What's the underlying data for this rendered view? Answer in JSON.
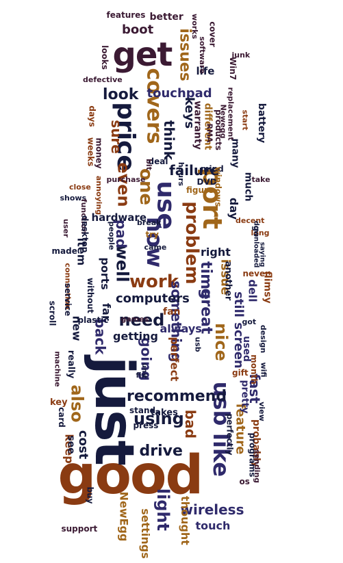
{
  "palette": {
    "plum": "#3b1a33",
    "navy": "#151a3d",
    "indigo": "#2f2a6b",
    "brown": "#8a3b12",
    "amber": "#a0661a"
  },
  "words": [
    {
      "text": "good",
      "color": "brown"
    },
    {
      "text": "just",
      "color": "navy"
    },
    {
      "text": "get",
      "color": "plum"
    },
    {
      "text": "usb",
      "color": "indigo"
    },
    {
      "text": "like",
      "color": "indigo"
    },
    {
      "text": "port",
      "color": "amber"
    },
    {
      "text": "price",
      "color": "navy"
    },
    {
      "text": "use",
      "color": "indigo"
    },
    {
      "text": "now",
      "color": "indigo"
    },
    {
      "text": "covers",
      "color": "amber"
    },
    {
      "text": "problem",
      "color": "brown"
    },
    {
      "text": "work",
      "color": "brown"
    },
    {
      "text": "one",
      "color": "amber"
    },
    {
      "text": "recommend",
      "color": "navy"
    },
    {
      "text": "need",
      "color": "navy"
    },
    {
      "text": "also",
      "color": "amber"
    },
    {
      "text": "using",
      "color": "navy"
    },
    {
      "text": "even",
      "color": "brown"
    },
    {
      "text": "well",
      "color": "navy"
    },
    {
      "text": "drive",
      "color": "navy"
    },
    {
      "text": "wireless",
      "color": "indigo"
    },
    {
      "text": "light",
      "color": "indigo"
    },
    {
      "text": "nice",
      "color": "amber"
    },
    {
      "text": "great",
      "color": "indigo"
    },
    {
      "text": "look",
      "color": "navy"
    },
    {
      "text": "issues",
      "color": "amber"
    },
    {
      "text": "time",
      "color": "indigo"
    },
    {
      "text": "sure",
      "color": "brown"
    },
    {
      "text": "boot",
      "color": "plum"
    },
    {
      "text": "touchpad",
      "color": "indigo"
    },
    {
      "text": "keys",
      "color": "navy"
    },
    {
      "text": "think",
      "color": "navy"
    },
    {
      "text": "failure",
      "color": "navy"
    },
    {
      "text": "pad",
      "color": "indigo"
    },
    {
      "text": "something",
      "color": "indigo"
    },
    {
      "text": "going",
      "color": "indigo"
    },
    {
      "text": "back",
      "color": "indigo"
    },
    {
      "text": "bad",
      "color": "brown"
    },
    {
      "text": "fast",
      "color": "indigo"
    },
    {
      "text": "screen",
      "color": "indigo"
    },
    {
      "text": "feature",
      "color": "amber"
    },
    {
      "text": "still",
      "color": "indigo"
    },
    {
      "text": "computers",
      "color": "navy"
    },
    {
      "text": "issue",
      "color": "amber"
    },
    {
      "text": "right",
      "color": "navy"
    },
    {
      "text": "day",
      "color": "navy"
    },
    {
      "text": "touch",
      "color": "indigo"
    },
    {
      "text": "settings",
      "color": "amber"
    },
    {
      "text": "NewEgg",
      "color": "amber"
    },
    {
      "text": "always",
      "color": "indigo"
    },
    {
      "text": "getting",
      "color": "navy"
    },
    {
      "text": "cost",
      "color": "navy"
    },
    {
      "text": "new",
      "color": "navy"
    },
    {
      "text": "keep",
      "color": "brown"
    },
    {
      "text": "see",
      "color": "navy"
    },
    {
      "text": "item",
      "color": "navy"
    },
    {
      "text": "ports",
      "color": "navy"
    },
    {
      "text": "hardware",
      "color": "navy"
    },
    {
      "text": "far",
      "color": "navy"
    },
    {
      "text": "used",
      "color": "indigo"
    },
    {
      "text": "dell",
      "color": "indigo"
    },
    {
      "text": "perfect",
      "color": "brown"
    },
    {
      "text": "takes",
      "color": "navy"
    },
    {
      "text": "probably",
      "color": "brown"
    },
    {
      "text": "fan",
      "color": "brown"
    },
    {
      "text": "pretty",
      "color": "indigo"
    },
    {
      "text": "life",
      "color": "navy"
    },
    {
      "text": "better",
      "color": "plum"
    },
    {
      "text": "cover",
      "color": "plum"
    },
    {
      "text": "features",
      "color": "plum"
    },
    {
      "text": "works",
      "color": "plum"
    },
    {
      "text": "software",
      "color": "plum"
    },
    {
      "text": "junk",
      "color": "plum"
    },
    {
      "text": "looks",
      "color": "plum"
    },
    {
      "text": "defective",
      "color": "plum"
    },
    {
      "text": "Win7",
      "color": "plum"
    },
    {
      "text": "warranty",
      "color": "plum"
    },
    {
      "text": "different",
      "color": "amber"
    },
    {
      "text": "products",
      "color": "plum"
    },
    {
      "text": "RMA",
      "color": "plum"
    },
    {
      "text": "replacement",
      "color": "plum"
    },
    {
      "text": "Newegg",
      "color": "plum"
    },
    {
      "text": "start",
      "color": "brown"
    },
    {
      "text": "battery",
      "color": "navy"
    },
    {
      "text": "many",
      "color": "navy"
    },
    {
      "text": "days",
      "color": "brown"
    },
    {
      "text": "money",
      "color": "plum"
    },
    {
      "text": "weeks",
      "color": "brown"
    },
    {
      "text": "deal",
      "color": "navy"
    },
    {
      "text": "bit",
      "color": "plum"
    },
    {
      "text": "hours",
      "color": "navy"
    },
    {
      "text": "mind",
      "color": "navy"
    },
    {
      "text": "DVD",
      "color": "navy"
    },
    {
      "text": "windows",
      "color": "amber"
    },
    {
      "text": "figure",
      "color": "amber"
    },
    {
      "text": "take",
      "color": "plum"
    },
    {
      "text": "purchase",
      "color": "plum"
    },
    {
      "text": "annoying",
      "color": "brown"
    },
    {
      "text": "close",
      "color": "brown"
    },
    {
      "text": "shows",
      "color": "navy"
    },
    {
      "text": "function",
      "color": "plum"
    },
    {
      "text": "much",
      "color": "navy"
    },
    {
      "text": "break",
      "color": "navy"
    },
    {
      "text": "try",
      "color": "amber"
    },
    {
      "text": "came",
      "color": "navy"
    },
    {
      "text": "people",
      "color": "navy"
    },
    {
      "text": "go",
      "color": "navy"
    },
    {
      "text": "decent",
      "color": "brown"
    },
    {
      "text": "long",
      "color": "brown"
    },
    {
      "text": "downloaded",
      "color": "navy"
    },
    {
      "text": "saying",
      "color": "navy"
    },
    {
      "text": "user",
      "color": "plum"
    },
    {
      "text": "desktop",
      "color": "navy"
    },
    {
      "text": "made",
      "color": "navy"
    },
    {
      "text": "another",
      "color": "navy"
    },
    {
      "text": "never",
      "color": "brown"
    },
    {
      "text": "connection",
      "color": "brown"
    },
    {
      "text": "without",
      "color": "navy"
    },
    {
      "text": "games",
      "color": "plum"
    },
    {
      "text": "service",
      "color": "navy"
    },
    {
      "text": "scroll",
      "color": "navy"
    },
    {
      "text": "plastic",
      "color": "navy"
    },
    {
      "text": "got",
      "color": "navy"
    },
    {
      "text": "design",
      "color": "navy"
    },
    {
      "text": "flimsy",
      "color": "brown"
    },
    {
      "text": "usb",
      "color": "navy"
    },
    {
      "text": "unit",
      "color": "navy"
    },
    {
      "text": "fix",
      "color": "navy"
    },
    {
      "text": "really",
      "color": "navy"
    },
    {
      "text": "machine",
      "color": "plum"
    },
    {
      "text": "gift",
      "color": "brown"
    },
    {
      "text": "month",
      "color": "brown"
    },
    {
      "text": "wifi",
      "color": "navy"
    },
    {
      "text": "key",
      "color": "brown"
    },
    {
      "text": "view",
      "color": "navy"
    },
    {
      "text": "card",
      "color": "navy"
    },
    {
      "text": "stand",
      "color": "navy"
    },
    {
      "text": "perfectly",
      "color": "navy"
    },
    {
      "text": "programs",
      "color": "navy"
    },
    {
      "text": "sending",
      "color": "plum"
    },
    {
      "text": "press",
      "color": "navy"
    },
    {
      "text": "os",
      "color": "plum"
    },
    {
      "text": "buy",
      "color": "navy"
    },
    {
      "text": "support",
      "color": "plum"
    },
    {
      "text": "thought",
      "color": "amber"
    }
  ]
}
